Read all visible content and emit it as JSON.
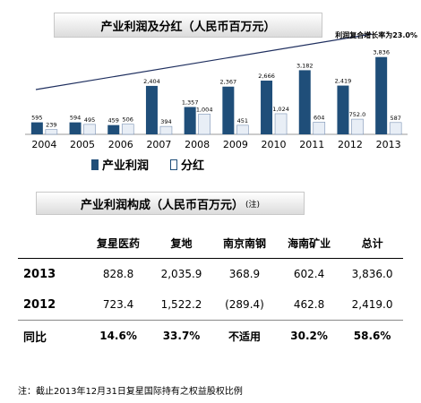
{
  "chart_data": {
    "type": "bar",
    "title": "产业利润及分红（人民币百万元）",
    "annotation": "利润复合增长率为23.0%",
    "categories": [
      "2004",
      "2005",
      "2006",
      "2007",
      "2008",
      "2009",
      "2010",
      "2011",
      "2012",
      "2013"
    ],
    "series": [
      {
        "name": "产业利润",
        "values": [
          595,
          594,
          459,
          2404,
          1357,
          2367,
          2666,
          3182,
          2419,
          3836
        ],
        "color": "#1f4e79"
      },
      {
        "name": "分红",
        "values": [
          239,
          495,
          506,
          394,
          1004,
          451,
          1024,
          604,
          752,
          587
        ],
        "color": "#e8eef6"
      }
    ],
    "value_labels": {
      "profit": [
        "595",
        "594",
        "459",
        "2,404",
        "1,357",
        "2,367",
        "2,666",
        "3,182",
        "2,419",
        "3,836"
      ],
      "dividend": [
        "239",
        "495",
        "506",
        "394",
        "1,004",
        "451",
        "1,024",
        "604",
        "752.0",
        "587"
      ]
    },
    "ylim": [
      0,
      4000
    ],
    "legend_position": "bottom"
  },
  "table": {
    "title": "产业利润构成（人民币百万元）",
    "title_note": "(注)",
    "headers": [
      "",
      "复星医药",
      "复地",
      "南京南钢",
      "海南矿业",
      "总计"
    ],
    "rows": [
      [
        "2013",
        "828.8",
        "2,035.9",
        "368.9",
        "602.4",
        "3,836.0"
      ],
      [
        "2012",
        "723.4",
        "1,522.2",
        "(289.4)",
        "462.8",
        "2,419.0"
      ],
      [
        "同比",
        "14.6%",
        "33.7%",
        "不适用",
        "30.2%",
        "58.6%"
      ]
    ]
  },
  "footnote": "注：截止2013年12月31日复星国际持有之权益股权比例"
}
